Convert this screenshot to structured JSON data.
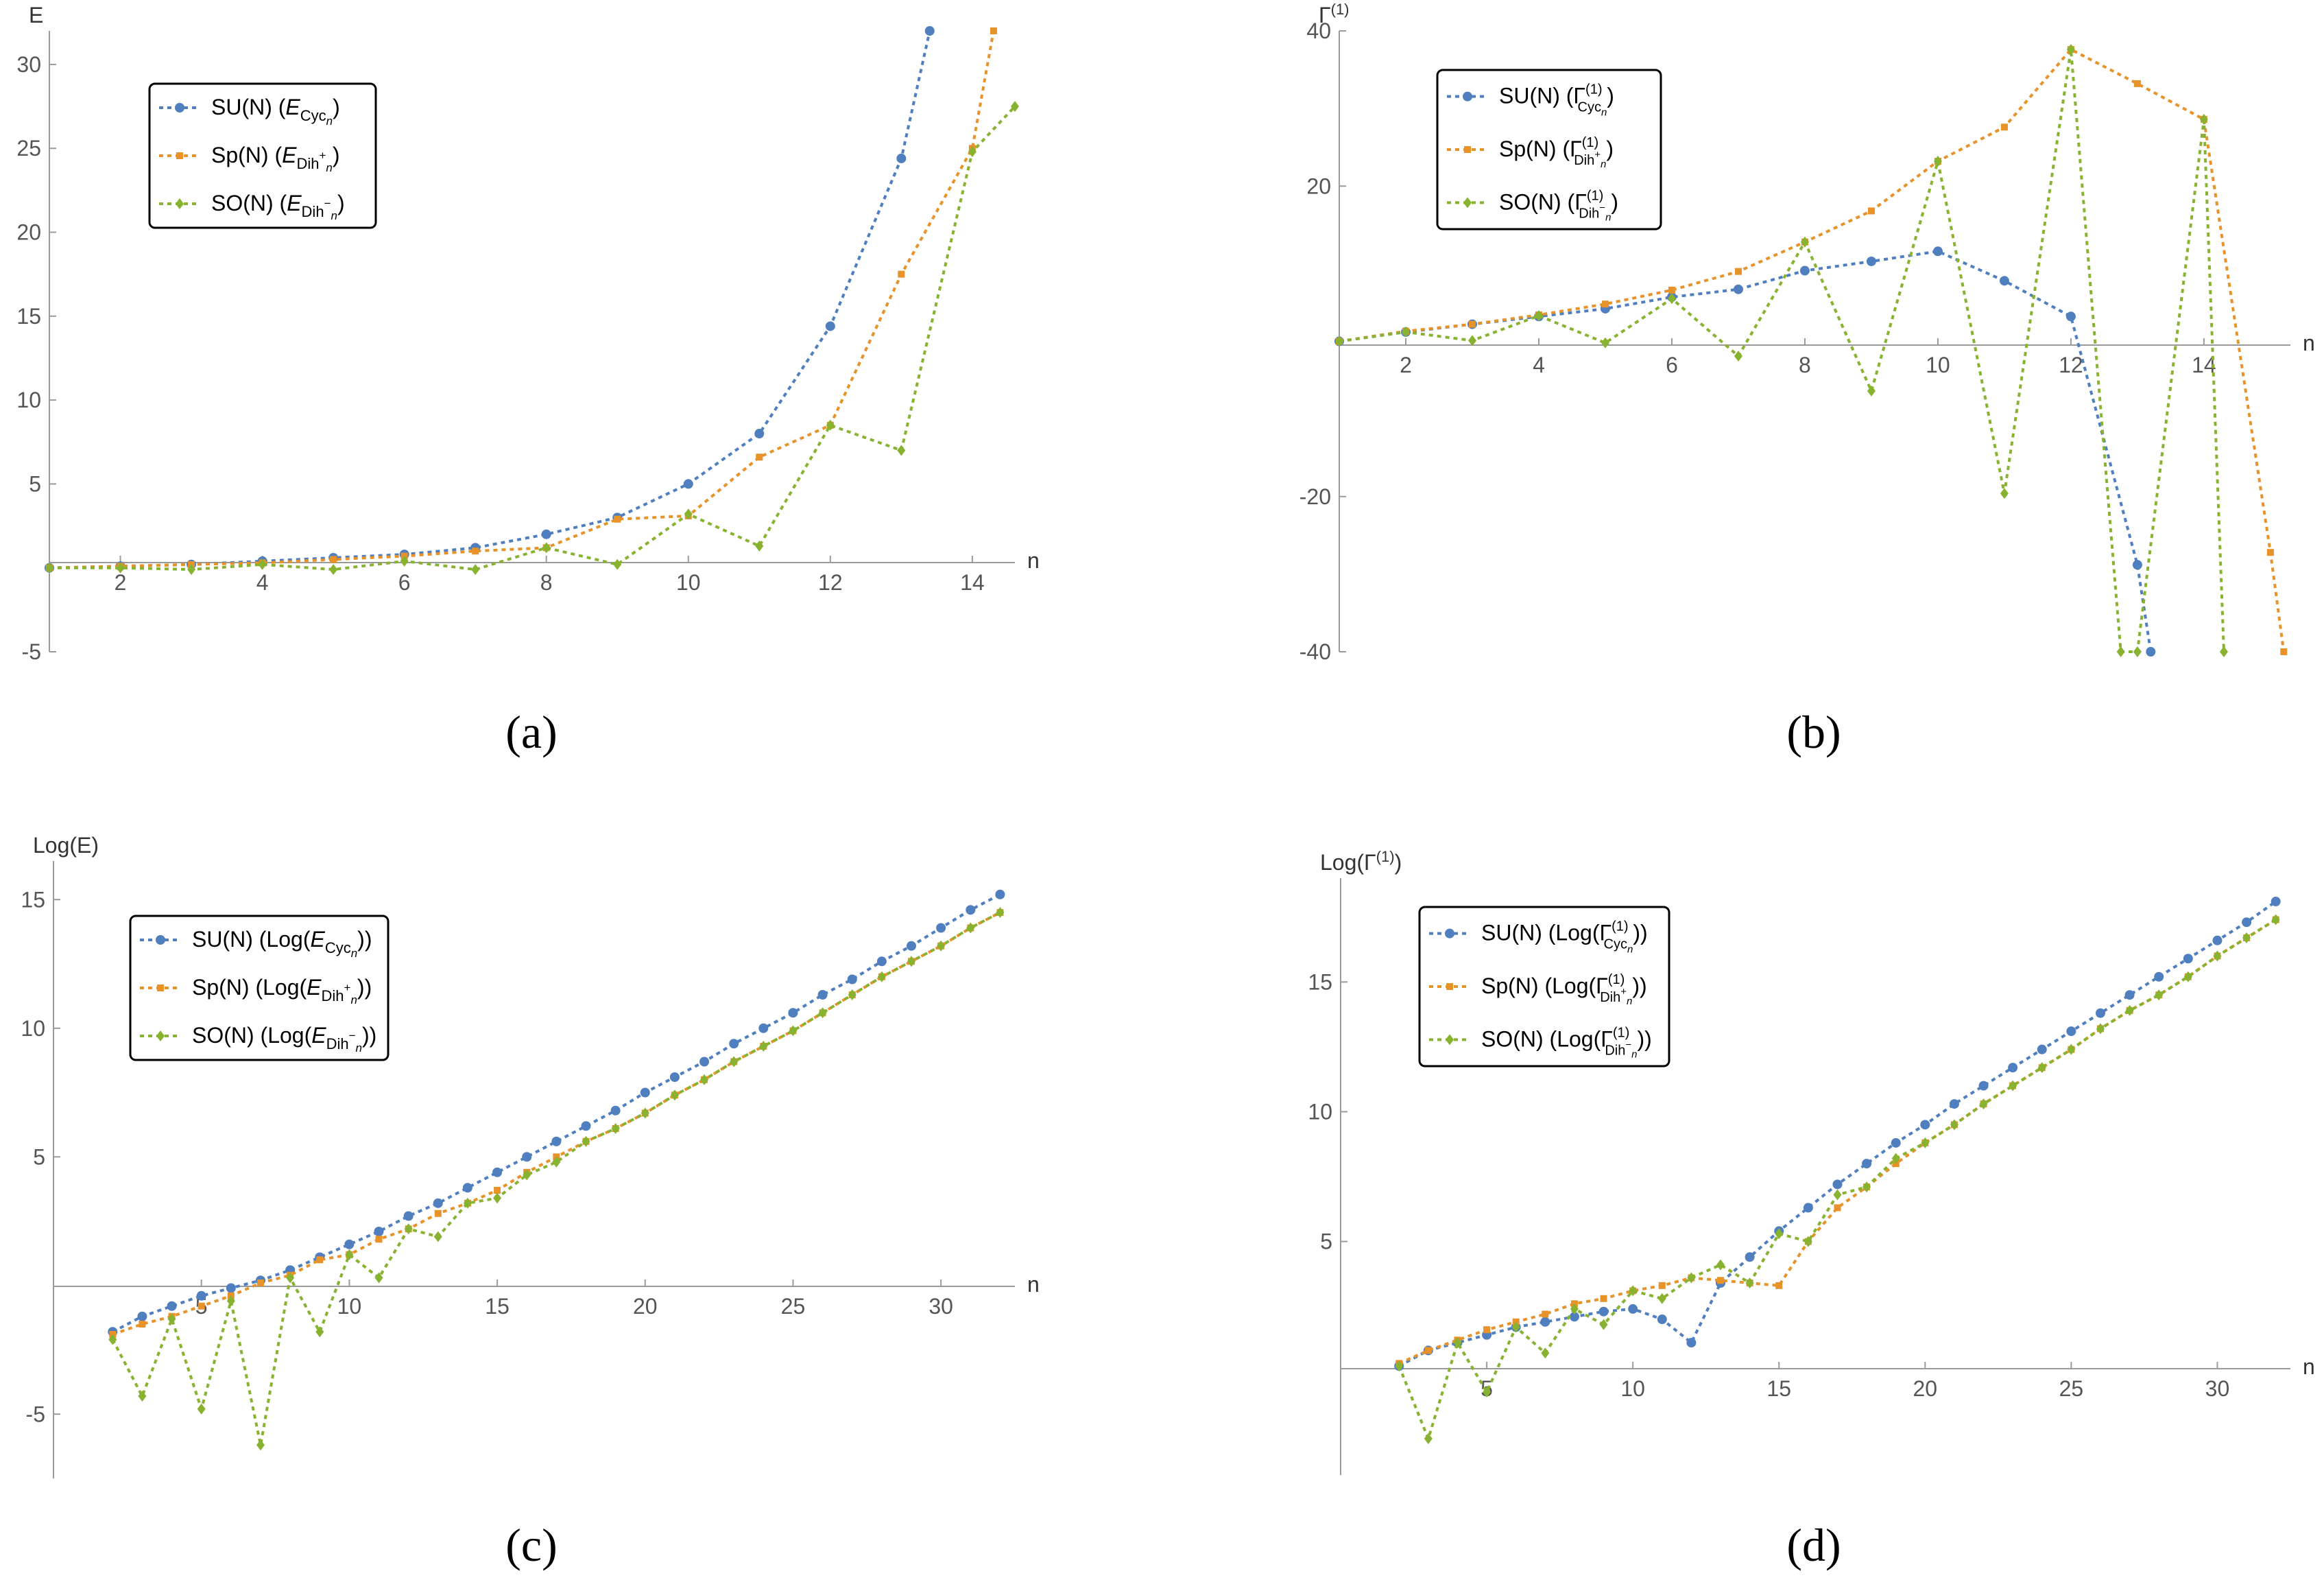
{
  "figure": {
    "colors": {
      "su": "#4f7fbf",
      "sp": "#e8922a",
      "so": "#88b330"
    }
  },
  "chart_data": [
    {
      "type": "line",
      "panel_label": "(a)",
      "ylabel": "E",
      "xlabel": "n",
      "xlim": [
        1,
        14.6
      ],
      "ylim": [
        -5,
        32
      ],
      "xticks": [
        2,
        4,
        6,
        8,
        10,
        12,
        14
      ],
      "yticks": [
        -5,
        5,
        10,
        15,
        20,
        25,
        30
      ],
      "legend": {
        "position": "top-left",
        "entries": [
          {
            "group": "SU(N)",
            "open": " (",
            "sym": "E",
            "sub": "Cyc",
            "subsub": "n",
            "sup": "",
            "close": ")"
          },
          {
            "group": "Sp(N)",
            "open": " (",
            "sym": "E",
            "sub": "Dih",
            "subsub": "n",
            "sup": "+",
            "close": ")"
          },
          {
            "group": "SO(N)",
            "open": " (",
            "sym": "E",
            "sub": "Dih",
            "subsub": "n",
            "sup": "−",
            "close": ")"
          }
        ]
      },
      "series": [
        {
          "name": "SU(N)",
          "marker": "circle",
          "x": [
            1,
            2,
            3,
            4,
            5,
            6,
            7,
            8,
            9,
            10,
            11,
            12,
            13,
            13.4
          ],
          "y": [
            0,
            0.1,
            0.2,
            0.4,
            0.6,
            0.8,
            1.2,
            2.0,
            3.0,
            5.0,
            8.0,
            14.4,
            24.4,
            32
          ]
        },
        {
          "name": "Sp(N)",
          "marker": "square",
          "x": [
            1,
            2,
            3,
            4,
            5,
            6,
            7,
            8,
            9,
            10,
            11,
            12,
            13,
            14,
            14.3
          ],
          "y": [
            0,
            0.1,
            0.2,
            0.3,
            0.5,
            0.7,
            1.0,
            1.2,
            2.9,
            3.1,
            6.6,
            8.5,
            17.5,
            25,
            32
          ]
        },
        {
          "name": "SO(N)",
          "marker": "diamond",
          "x": [
            1,
            2,
            3,
            4,
            5,
            6,
            7,
            8,
            9,
            10,
            11,
            12,
            13,
            14,
            14.6
          ],
          "y": [
            0,
            0,
            -0.1,
            0.2,
            -0.1,
            0.4,
            -0.1,
            1.2,
            0.2,
            3.2,
            1.3,
            8.5,
            7.0,
            24.8,
            27.5
          ]
        }
      ]
    },
    {
      "type": "line",
      "panel_label": "(b)",
      "ylabel": "Γ",
      "ylabel_sup": "(1)",
      "xlabel": "n",
      "xlim": [
        1,
        15.3
      ],
      "ylim": [
        -40,
        40
      ],
      "xticks": [
        2,
        4,
        6,
        8,
        10,
        12,
        14
      ],
      "yticks": [
        -40,
        -20,
        20,
        40
      ],
      "legend": {
        "position": "top-left",
        "entries": [
          {
            "group": "SU(N)",
            "open": " (",
            "sym": "Γ",
            "sup": "(1)",
            "sub": "Cyc",
            "subsub": "n",
            "subsup": "",
            "close": ")"
          },
          {
            "group": "Sp(N)",
            "open": " (",
            "sym": "Γ",
            "sup": "(1)",
            "sub": "Dih",
            "subsub": "n",
            "subsup": "+",
            "close": ")"
          },
          {
            "group": "SO(N)",
            "open": " (",
            "sym": "Γ",
            "sup": "(1)",
            "sub": "Dih",
            "subsub": "n",
            "subsup": "−",
            "close": ")"
          }
        ]
      },
      "series": [
        {
          "name": "SU(N)",
          "marker": "circle",
          "x": [
            1,
            2,
            3,
            4,
            5,
            6,
            7,
            8,
            9,
            10,
            11,
            12,
            13,
            13.2
          ],
          "y": [
            0,
            1.2,
            2.2,
            3.2,
            4.2,
            5.7,
            6.7,
            9.1,
            10.3,
            11.6,
            7.8,
            3.2,
            -28.8,
            -40
          ]
        },
        {
          "name": "Sp(N)",
          "marker": "square",
          "x": [
            1,
            2,
            3,
            4,
            5,
            6,
            7,
            8,
            9,
            10,
            11,
            12,
            13,
            14,
            15,
            15.2
          ],
          "y": [
            0,
            1.3,
            2.2,
            3.4,
            4.8,
            6.6,
            9.0,
            12.8,
            16.8,
            23.2,
            27.6,
            37.6,
            33.2,
            28.6,
            -27.2,
            -40
          ]
        },
        {
          "name": "SO(N)",
          "marker": "diamond",
          "x": [
            1,
            2,
            3,
            4,
            5,
            6,
            7,
            8,
            9,
            10,
            11,
            12,
            12.75,
            13,
            14,
            14.3
          ],
          "y": [
            0,
            1.2,
            0.1,
            3.3,
            -0.2,
            5.5,
            -1.9,
            12.8,
            -6.4,
            23.2,
            -19.6,
            37.6,
            -40,
            -40,
            28.6,
            -40
          ]
        }
      ]
    },
    {
      "type": "line",
      "panel_label": "(c)",
      "ylabel": "Log(E)",
      "xlabel": "n",
      "xlim": [
        0,
        32.5
      ],
      "ylim": [
        -7.5,
        16.5
      ],
      "xticks": [
        5,
        10,
        15,
        20,
        25,
        30
      ],
      "yticks": [
        -5,
        5,
        10,
        15
      ],
      "legend": {
        "position": "top-left",
        "entries": [
          {
            "group": "SU(N)",
            "open": " (Log(",
            "sym": "E",
            "sub": "Cyc",
            "subsub": "n",
            "sup": "",
            "close": "))"
          },
          {
            "group": "Sp(N)",
            "open": " (Log(",
            "sym": "E",
            "sub": "Dih",
            "subsub": "n",
            "sup": "+",
            "close": "))"
          },
          {
            "group": "SO(N)",
            "open": " (Log(",
            "sym": "E",
            "sub": "Dih",
            "subsub": "n",
            "sup": "−",
            "close": "))"
          }
        ]
      },
      "series": [
        {
          "name": "SU(N)",
          "marker": "circle",
          "x": [
            2,
            3,
            4,
            5,
            6,
            7,
            8,
            9,
            10,
            11,
            12,
            13,
            14,
            15,
            16,
            17,
            18,
            19,
            20,
            21,
            22,
            23,
            24,
            25,
            26,
            27,
            28,
            29,
            30,
            31,
            32
          ],
          "y": [
            -1.8,
            -1.2,
            -0.8,
            -0.4,
            -0.1,
            0.2,
            0.6,
            1.1,
            1.6,
            2.1,
            2.7,
            3.2,
            3.8,
            4.4,
            5.0,
            5.6,
            6.2,
            6.8,
            7.5,
            8.1,
            8.7,
            9.4,
            10.0,
            10.6,
            11.3,
            11.9,
            12.6,
            13.2,
            13.9,
            14.6,
            15.2
          ]
        },
        {
          "name": "Sp(N)",
          "marker": "square",
          "x": [
            2,
            3,
            4,
            5,
            6,
            7,
            8,
            9,
            10,
            11,
            12,
            13,
            14,
            15,
            16,
            17,
            18,
            19,
            20,
            21,
            22,
            23,
            24,
            25,
            26,
            27,
            28,
            29,
            30,
            31,
            32
          ],
          "y": [
            -1.9,
            -1.5,
            -1.2,
            -0.8,
            -0.4,
            0.1,
            0.4,
            1.0,
            1.2,
            1.8,
            2.2,
            2.8,
            3.2,
            3.7,
            4.4,
            5.0,
            5.6,
            6.1,
            6.7,
            7.4,
            8.0,
            8.7,
            9.3,
            9.9,
            10.6,
            11.3,
            12.0,
            12.6,
            13.2,
            13.9,
            14.5
          ]
        },
        {
          "name": "SO(N)",
          "marker": "diamond",
          "x": [
            2,
            3,
            4,
            5,
            6,
            7,
            8,
            9,
            10,
            11,
            12,
            13,
            14,
            15,
            16,
            17,
            18,
            19,
            20,
            21,
            22,
            23,
            24,
            25,
            26,
            27,
            28,
            29,
            30,
            31,
            32
          ],
          "y": [
            -2.1,
            -4.3,
            -1.3,
            -4.8,
            -0.6,
            -6.2,
            0.3,
            -1.8,
            1.2,
            0.3,
            2.2,
            1.9,
            3.2,
            3.4,
            4.3,
            4.8,
            5.6,
            6.1,
            6.7,
            7.4,
            8.0,
            8.7,
            9.3,
            9.9,
            10.6,
            11.3,
            12.0,
            12.6,
            13.2,
            13.9,
            14.5
          ]
        }
      ]
    },
    {
      "type": "line",
      "panel_label": "(d)",
      "ylabel": "Log(Γ",
      "ylabel_sup": "(1)",
      "ylabel_close": ")",
      "xlabel": "n",
      "xlim": [
        0,
        32.5
      ],
      "ylim": [
        -4,
        19
      ],
      "xticks": [
        5,
        10,
        15,
        20,
        25,
        30
      ],
      "yticks": [
        5,
        10,
        15
      ],
      "legend": {
        "position": "top-left",
        "entries": [
          {
            "group": "SU(N)",
            "open": " (Log(",
            "sym": "Γ",
            "sup": "(1)",
            "sub": "Cyc",
            "subsub": "n",
            "subsup": "",
            "close": "))"
          },
          {
            "group": "Sp(N)",
            "open": " (Log(",
            "sym": "Γ",
            "sup": "(1)",
            "sub": "Dih",
            "subsub": "n",
            "subsup": "+",
            "close": "))"
          },
          {
            "group": "SO(N)",
            "open": " (Log(",
            "sym": "Γ",
            "sup": "(1)",
            "sub": "Dih",
            "subsub": "n",
            "subsup": "−",
            "close": "))"
          }
        ]
      },
      "series": [
        {
          "name": "SU(N)",
          "marker": "circle",
          "x": [
            2,
            3,
            4,
            5,
            6,
            7,
            8,
            9,
            10,
            11,
            12,
            13,
            14,
            15,
            16,
            17,
            18,
            19,
            20,
            21,
            22,
            23,
            24,
            25,
            26,
            27,
            28,
            29,
            30,
            31,
            32
          ],
          "y": [
            0.2,
            0.8,
            1.1,
            1.4,
            1.7,
            1.9,
            2.1,
            2.3,
            2.4,
            2.0,
            1.1,
            3.4,
            4.4,
            5.4,
            6.3,
            7.2,
            8.0,
            8.8,
            9.5,
            10.3,
            11.0,
            11.7,
            12.4,
            13.1,
            13.8,
            14.5,
            15.2,
            15.9,
            16.6,
            17.3,
            18.1
          ]
        },
        {
          "name": "Sp(N)",
          "marker": "square",
          "x": [
            2,
            3,
            4,
            5,
            6,
            7,
            8,
            9,
            10,
            11,
            12,
            13,
            14,
            15,
            16,
            17,
            18,
            19,
            20,
            21,
            22,
            23,
            24,
            25,
            26,
            27,
            28,
            29,
            30,
            31,
            32
          ],
          "y": [
            0.3,
            0.8,
            1.2,
            1.6,
            1.9,
            2.2,
            2.6,
            2.8,
            3.1,
            3.3,
            3.6,
            3.5,
            3.4,
            3.3,
            5.0,
            6.3,
            7.1,
            8.0,
            8.8,
            9.5,
            10.3,
            11.0,
            11.7,
            12.4,
            13.2,
            13.9,
            14.5,
            15.2,
            16.0,
            16.7,
            17.4
          ]
        },
        {
          "name": "SO(N)",
          "marker": "diamond",
          "x": [
            2,
            3,
            4,
            5,
            6,
            7,
            8,
            9,
            10,
            11,
            12,
            13,
            14,
            15,
            16,
            17,
            18,
            19,
            20,
            21,
            22,
            23,
            24,
            25,
            26,
            27,
            28,
            29,
            30,
            31,
            32
          ],
          "y": [
            0.2,
            -2.6,
            1.1,
            -0.8,
            1.7,
            0.7,
            2.4,
            1.8,
            3.1,
            2.8,
            3.6,
            4.1,
            3.4,
            5.3,
            5.0,
            6.8,
            7.1,
            8.2,
            8.8,
            9.5,
            10.3,
            11.0,
            11.7,
            12.4,
            13.2,
            13.9,
            14.5,
            15.2,
            16.0,
            16.7,
            17.4
          ]
        }
      ]
    }
  ]
}
